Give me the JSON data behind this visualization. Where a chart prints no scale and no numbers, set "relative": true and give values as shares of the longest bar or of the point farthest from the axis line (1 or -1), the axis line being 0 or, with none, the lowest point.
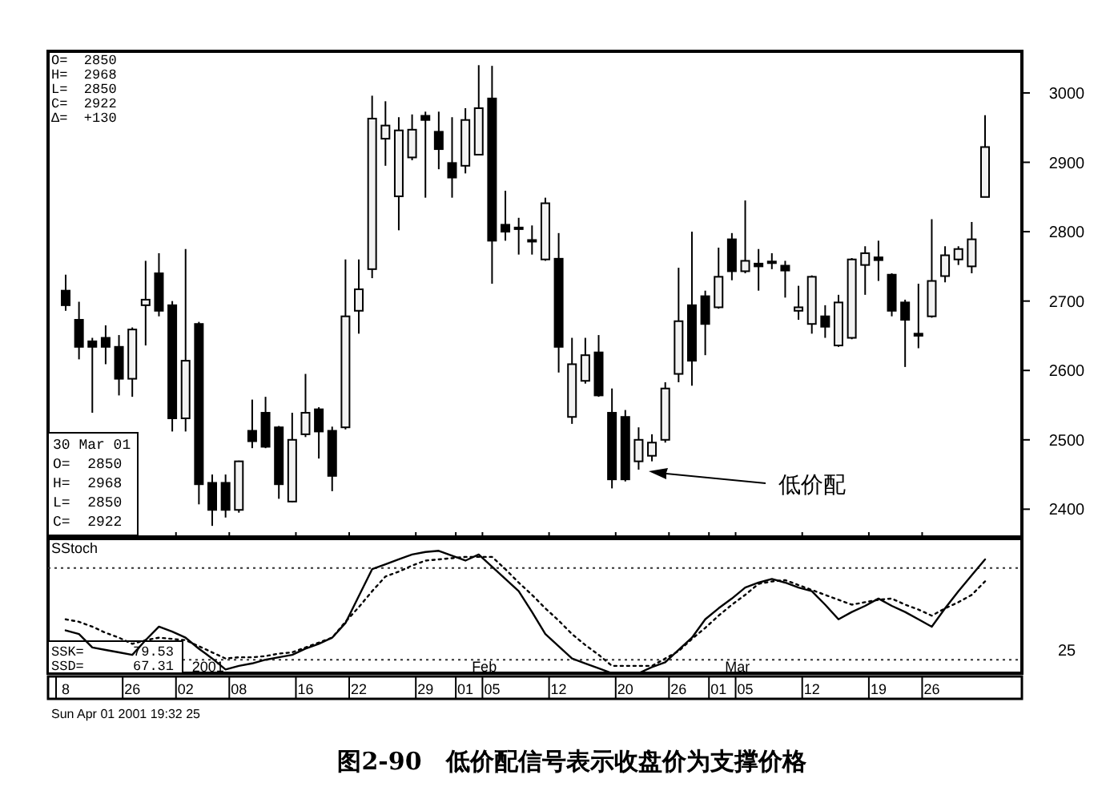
{
  "chart_data": [
    {
      "type": "candlestick",
      "title": "图2-90　低价配信号表示收盘价为支撑价格",
      "categories": [
        "8",
        null,
        null,
        null,
        null,
        "26",
        null,
        null,
        null,
        "02",
        null,
        null,
        null,
        "08",
        null,
        null,
        null,
        null,
        "16",
        null,
        null,
        null,
        "22",
        null,
        null,
        null,
        null,
        "29",
        null,
        null,
        "01",
        null,
        "05",
        null,
        null,
        null,
        null,
        "12",
        null,
        null,
        null,
        null,
        "20",
        null,
        null,
        null,
        "26",
        null,
        null,
        "01",
        null,
        "05",
        null,
        null,
        null,
        null,
        "12",
        null,
        null,
        null,
        null,
        "19",
        null,
        null,
        null,
        "26",
        null,
        null,
        null,
        null
      ],
      "ohlc": [
        [
          2715,
          2738,
          2686,
          2694
        ],
        [
          2673,
          2699,
          2616,
          2634
        ],
        [
          2642,
          2647,
          2539,
          2634
        ],
        [
          2647,
          2665,
          2609,
          2634
        ],
        [
          2634,
          2651,
          2564,
          2588
        ],
        [
          2588,
          2662,
          2562,
          2659
        ],
        [
          2694,
          2758,
          2636,
          2702
        ],
        [
          2740,
          2769,
          2678,
          2686
        ],
        [
          2694,
          2700,
          2512,
          2531
        ],
        [
          2531,
          2775,
          2512,
          2614
        ],
        [
          2667,
          2670,
          2407,
          2436
        ],
        [
          2438,
          2450,
          2376,
          2399
        ],
        [
          2438,
          2450,
          2388,
          2399
        ],
        [
          2399,
          2470,
          2395,
          2469
        ],
        [
          2513,
          2558,
          2488,
          2498
        ],
        [
          2539,
          2562,
          2488,
          2490
        ],
        [
          2518,
          2520,
          2415,
          2436
        ],
        [
          2411,
          2539,
          2410,
          2500
        ],
        [
          2508,
          2595,
          2504,
          2539
        ],
        [
          2544,
          2547,
          2473,
          2512
        ],
        [
          2513,
          2519,
          2426,
          2448
        ],
        [
          2518,
          2760,
          2515,
          2678
        ],
        [
          2686,
          2760,
          2653,
          2717
        ],
        [
          2746,
          2996,
          2733,
          2963
        ],
        [
          2934,
          2988,
          2895,
          2953
        ],
        [
          2851,
          2965,
          2802,
          2946
        ],
        [
          2907,
          2969,
          2903,
          2947
        ],
        [
          2967,
          2973,
          2849,
          2961
        ],
        [
          2944,
          2973,
          2890,
          2919
        ],
        [
          2899,
          2965,
          2849,
          2878
        ],
        [
          2895,
          2978,
          2884,
          2961
        ],
        [
          2911,
          3040,
          2911,
          2978
        ],
        [
          2992,
          3039,
          2725,
          2787
        ],
        [
          2810,
          2859,
          2787,
          2800
        ],
        [
          2806,
          2820,
          2767,
          2804
        ],
        [
          2788,
          2809,
          2767,
          2786
        ],
        [
          2760,
          2849,
          2758,
          2841
        ],
        [
          2761,
          2798,
          2597,
          2634
        ],
        [
          2533,
          2647,
          2523,
          2609
        ],
        [
          2585,
          2647,
          2581,
          2622
        ],
        [
          2626,
          2651,
          2562,
          2564
        ],
        [
          2539,
          2574,
          2430,
          2443
        ],
        [
          2533,
          2543,
          2440,
          2443
        ],
        [
          2469,
          2518,
          2457,
          2500
        ],
        [
          2477,
          2508,
          2469,
          2496
        ],
        [
          2500,
          2583,
          2496,
          2574
        ],
        [
          2595,
          2748,
          2583,
          2671
        ],
        [
          2694,
          2800,
          2578,
          2614
        ],
        [
          2707,
          2715,
          2622,
          2667
        ],
        [
          2691,
          2777,
          2689,
          2735
        ],
        [
          2789,
          2798,
          2730,
          2743
        ],
        [
          2743,
          2845,
          2740,
          2758
        ],
        [
          2754,
          2775,
          2715,
          2750
        ],
        [
          2757,
          2769,
          2746,
          2755
        ],
        [
          2751,
          2758,
          2705,
          2744
        ],
        [
          2686,
          2722,
          2673,
          2691
        ],
        [
          2667,
          2737,
          2653,
          2735
        ],
        [
          2678,
          2694,
          2647,
          2663
        ],
        [
          2636,
          2709,
          2634,
          2698
        ],
        [
          2647,
          2762,
          2645,
          2760
        ],
        [
          2752,
          2779,
          2709,
          2769
        ],
        [
          2763,
          2787,
          2729,
          2759
        ],
        [
          2738,
          2740,
          2678,
          2686
        ],
        [
          2698,
          2702,
          2605,
          2673
        ],
        [
          2653,
          2725,
          2632,
          2650
        ],
        [
          2678,
          2818,
          2676,
          2729
        ],
        [
          2736,
          2779,
          2727,
          2766
        ],
        [
          2760,
          2779,
          2752,
          2775
        ],
        [
          2750,
          2814,
          2740,
          2789
        ],
        [
          2850,
          2968,
          2850,
          2922
        ]
      ],
      "ylim": [
        2360,
        3060
      ],
      "yticks": [
        2400,
        2500,
        2600,
        2700,
        2800,
        2900,
        3000
      ],
      "tick_labels": "y",
      "annotations": [
        "O=  2850",
        "H=  2968",
        "L=  2850",
        "C=  2922",
        "Δ=  +130",
        "30 Mar 01",
        "O=  2850",
        "H=  2968",
        "L=  2850",
        "C=  2922",
        "低价配"
      ]
    },
    {
      "type": "line",
      "categories": [
        "8",
        null,
        null,
        null,
        null,
        "26",
        null,
        null,
        null,
        "02",
        null,
        null,
        null,
        "08",
        null,
        null,
        null,
        null,
        "16",
        null,
        null,
        null,
        "22",
        null,
        null,
        null,
        null,
        "29",
        null,
        null,
        "01",
        null,
        "05",
        null,
        null,
        null,
        null,
        "12",
        null,
        null,
        null,
        null,
        "20",
        null,
        null,
        null,
        "26",
        null,
        null,
        "01",
        null,
        "05",
        null,
        null,
        null,
        null,
        "12",
        null,
        null,
        null,
        null,
        "19",
        null,
        null,
        null,
        "26",
        null,
        null,
        null,
        null
      ],
      "series": [
        {
          "color": "#000000",
          "line_style": "solid",
          "values": [
            0.35,
            0.32,
            0.21,
            0.19,
            0.17,
            0.15,
            0.27,
            0.38,
            0.34,
            0.29,
            0.2,
            0.12,
            0.03,
            0.06,
            0.08,
            0.11,
            0.13,
            0.15,
            0.2,
            0.24,
            0.29,
            0.41,
            0.63,
            0.85,
            0.89,
            0.93,
            0.97,
            0.99,
            1,
            0.96,
            0.92,
            0.97,
            0.87,
            0.77,
            0.67,
            0.5,
            0.32,
            0.22,
            0.12,
            0.08,
            0.04,
            0,
            0,
            0,
            0.05,
            0.09,
            0.19,
            0.29,
            0.44,
            0.53,
            0.61,
            0.7,
            0.74,
            0.77,
            0.74,
            0.7,
            0.67,
            0.56,
            0.44,
            0.5,
            0.55,
            0.61,
            0.55,
            0.5,
            0.44,
            0.38,
            0.53,
            0.67,
            0.8,
            0.93
          ]
        },
        {
          "color": "#000000",
          "line_style": "dotted",
          "values": [
            0.44,
            0.42,
            0.38,
            0.33,
            0.29,
            0.24,
            0.27,
            0.29,
            0.28,
            0.27,
            0.22,
            0.17,
            0.12,
            0.13,
            0.13,
            0.14,
            0.16,
            0.17,
            0.21,
            0.25,
            0.29,
            0.42,
            0.54,
            0.67,
            0.79,
            0.83,
            0.88,
            0.92,
            0.93,
            0.94,
            0.95,
            0.95,
            0.95,
            0.85,
            0.74,
            0.64,
            0.53,
            0.43,
            0.32,
            0.23,
            0.15,
            0.06,
            0.06,
            0.06,
            0.06,
            0.12,
            0.18,
            0.28,
            0.37,
            0.47,
            0.56,
            0.64,
            0.73,
            0.75,
            0.76,
            0.72,
            0.68,
            0.64,
            0.6,
            0.56,
            0.58,
            0.6,
            0.61,
            0.56,
            0.52,
            0.47,
            0.53,
            0.58,
            0.64,
            0.75
          ]
        }
      ],
      "relative": true,
      "tick_labels": "x",
      "ref_lines": [
        {
          "axis": "y",
          "value": 0.11,
          "line_style": "dotted"
        },
        {
          "axis": "y",
          "value": 0.86,
          "line_style": "dotted"
        }
      ],
      "annotations": [
        "SStoch",
        "SSK=      79.53",
        "SSD=      67.31",
        "2001",
        "Feb",
        "Mar",
        "Sun Apr 01 2001 19:32 25",
        "25"
      ]
    }
  ]
}
